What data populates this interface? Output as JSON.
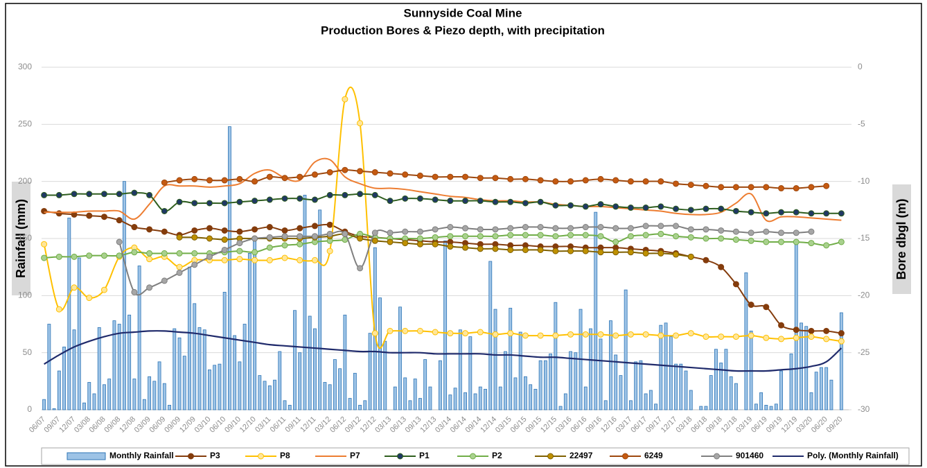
{
  "chart_data": [
    {
      "type": "bar",
      "title": "Sunnyside Coal Mine",
      "subtitle": "Production Bores & Piezo depth, with precipitation",
      "ylabel": "Rainfall (mm)",
      "ylim": [
        0,
        300
      ],
      "yticks": [
        0,
        50,
        100,
        150,
        200,
        250,
        300
      ],
      "grid": true,
      "categories": [
        "06/07",
        null,
        null,
        "09/07",
        null,
        null,
        "12/07",
        null,
        null,
        "03/08",
        null,
        null,
        "06/08",
        null,
        null,
        "09/08",
        null,
        null,
        "12/08",
        null,
        null,
        "03/09",
        null,
        null,
        "06/09",
        null,
        null,
        "09/09",
        null,
        null,
        "12/09",
        null,
        null,
        "03/10",
        null,
        null,
        "06/10",
        null,
        null,
        "09/10",
        null,
        null,
        "12/10",
        null,
        null,
        "03/11",
        null,
        null,
        "06/11",
        null,
        null,
        "09/11",
        null,
        null,
        "12/11",
        null,
        null,
        "03/12",
        null,
        null,
        "06/12",
        null,
        null,
        "09/12",
        null,
        null,
        "12/12",
        null,
        null,
        "03/13",
        null,
        null,
        "06/13",
        null,
        null,
        "09/13",
        null,
        null,
        "12/13",
        null,
        null,
        "03/14",
        null,
        null,
        "06/14",
        null,
        null,
        "09/14",
        null,
        null,
        "12/14",
        null,
        null,
        "03/15",
        null,
        null,
        "06/15",
        null,
        null,
        "09/15",
        null,
        null,
        "12/15",
        null,
        null,
        "03/16",
        null,
        null,
        "06/16",
        null,
        null,
        "09/16",
        null,
        null,
        "12/16",
        null,
        null,
        "03/17",
        null,
        null,
        "06/17",
        null,
        null,
        "09/17",
        null,
        null,
        "12/17",
        null,
        null,
        "03/18",
        null,
        null,
        "06/18",
        null,
        null,
        "09/18",
        null,
        null,
        "12/18",
        null,
        null,
        "03/19",
        null,
        null,
        "06/19",
        null,
        null,
        "09/19",
        null,
        null,
        "12/19",
        null,
        null,
        "03/20",
        null,
        null,
        "06/20",
        null,
        null,
        "09/20"
      ],
      "series": [
        {
          "name": "Monthly Rainfall",
          "color": "#9dc3e6",
          "edge_color": "#2e75b6",
          "values": [
            9,
            75,
            1,
            34,
            55,
            168,
            70,
            133,
            6,
            24,
            14,
            72,
            22,
            27,
            78,
            75,
            200,
            83,
            27,
            126,
            9,
            29,
            25,
            42,
            23,
            4,
            71,
            63,
            47,
            125,
            93,
            72,
            70,
            35,
            39,
            40,
            103,
            248,
            65,
            42,
            75,
            137,
            150,
            30,
            25,
            21,
            26,
            51,
            8,
            4,
            87,
            50,
            188,
            82,
            71,
            175,
            24,
            22,
            44,
            36,
            83,
            10,
            32,
            4,
            8,
            67,
            142,
            98,
            60,
            0,
            20,
            90,
            28,
            8,
            27,
            10,
            44,
            20,
            0,
            43,
            148,
            13,
            19,
            70,
            15,
            64,
            14,
            20,
            18,
            130,
            88,
            20,
            51,
            89,
            28,
            68,
            29,
            22,
            18,
            43,
            43,
            49,
            94,
            3,
            14,
            51,
            50,
            88,
            20,
            71,
            173,
            62,
            8,
            78,
            48,
            30,
            105,
            8,
            42,
            43,
            14,
            17,
            5,
            74,
            76,
            64,
            40,
            40,
            34,
            17,
            0,
            3,
            3,
            30,
            53,
            41,
            53,
            29,
            23,
            0,
            120,
            69,
            5,
            15,
            4,
            3,
            5,
            34,
            0,
            49,
            147,
            76,
            73,
            15,
            33,
            37,
            37,
            26,
            0,
            85
          ]
        }
      ]
    },
    {
      "type": "line",
      "y2label": "Bore dbgl (m)",
      "y2lim": [
        -30,
        0
      ],
      "y2ticks": [
        -30,
        -25,
        -20,
        -15,
        -10,
        -5,
        0
      ],
      "x": [
        "06/07",
        "09/07",
        "12/07",
        "03/08",
        "06/08",
        "09/08",
        "12/08",
        "03/09",
        "06/09",
        "09/09",
        "12/09",
        "03/10",
        "06/10",
        "09/10",
        "12/10",
        "03/11",
        "06/11",
        "09/11",
        "12/11",
        "03/12",
        "06/12",
        "09/12",
        "12/12",
        "03/13",
        "06/13",
        "09/13",
        "12/13",
        "03/14",
        "06/14",
        "09/14",
        "12/14",
        "03/15",
        "06/15",
        "09/15",
        "12/15",
        "03/16",
        "06/16",
        "09/16",
        "12/16",
        "03/17",
        "06/17",
        "09/17",
        "12/17",
        "03/18",
        "06/18",
        "09/18",
        "12/18",
        "03/19",
        "06/19",
        "09/19",
        "12/19",
        "03/20",
        "06/20",
        "09/20"
      ],
      "series": [
        {
          "name": "P3",
          "axis": "y2",
          "color": "#843c0c",
          "marker_color": "#843c0c",
          "values": [
            -12.6,
            -12.8,
            -12.9,
            -13.0,
            -13.1,
            -13.4,
            -14.0,
            -14.2,
            -14.4,
            -14.7,
            -14.3,
            -14.1,
            -14.3,
            -14.4,
            -14.2,
            -14.0,
            -14.3,
            -14.1,
            -13.9,
            -13.8,
            -14.4,
            -14.8,
            -14.9,
            -15.0,
            -15.1,
            -15.2,
            -15.3,
            -15.3,
            -15.4,
            -15.5,
            -15.5,
            -15.6,
            -15.6,
            -15.7,
            -15.7,
            -15.7,
            -15.8,
            -15.8,
            -15.8,
            -15.9,
            -16.0,
            -16.1,
            -16.3,
            -16.6,
            -16.9,
            -17.5,
            -19.0,
            -20.8,
            -21.0,
            -22.6,
            -23.0,
            -23.1,
            -23.1,
            -23.3
          ]
        },
        {
          "name": "P8",
          "axis": "y2",
          "color": "#ffc000",
          "marker_color": "#ffe699",
          "values": [
            -15.5,
            -21.2,
            -19.3,
            -20.2,
            -19.5,
            -16.6,
            -15.8,
            -16.8,
            -16.6,
            -17.5,
            -16.9,
            -16.9,
            -16.9,
            -16.8,
            -16.9,
            -16.9,
            -16.7,
            -16.9,
            -16.9,
            -16.1,
            -2.8,
            -4.9,
            -23.3,
            -23.1,
            -23.1,
            -23.1,
            -23.2,
            -23.3,
            -23.3,
            -23.2,
            -23.4,
            -23.3,
            -23.5,
            -23.5,
            -23.5,
            -23.4,
            -23.4,
            -23.4,
            -23.5,
            -23.4,
            -23.4,
            -23.5,
            -23.5,
            -23.3,
            -23.6,
            -23.6,
            -23.6,
            -23.5,
            -23.7,
            -23.8,
            -23.7,
            -23.6,
            -23.8,
            -24.0
          ]
        },
        {
          "name": "P7",
          "axis": "y2",
          "color": "#ed7d31",
          "values": [
            -12.7,
            -12.7,
            -12.7,
            -12.6,
            -12.6,
            -12.6,
            -13.3,
            -12.0,
            -10.4,
            -10.4,
            -10.4,
            -10.5,
            -10.4,
            -10.2,
            -9.3,
            -9.0,
            -9.7,
            -9.9,
            -8.3,
            -8.1,
            -9.6,
            -10.2,
            -10.6,
            -10.6,
            -10.7,
            -10.9,
            -11.1,
            -11.3,
            -11.4,
            -11.6,
            -11.7,
            -11.7,
            -11.8,
            -11.8,
            -12.0,
            -12.1,
            -12.2,
            -12.2,
            -12.3,
            -12.4,
            -12.5,
            -12.6,
            -12.8,
            -12.9,
            -12.9,
            -12.7,
            -11.9,
            -11.1,
            -13.4,
            -13.1,
            -13.1,
            -13.2,
            -13.3,
            -13.4
          ]
        },
        {
          "name": "P1",
          "axis": "y2",
          "color": "#2e5e1e",
          "marker_color": "#203864",
          "values": [
            -11.2,
            -11.2,
            -11.1,
            -11.1,
            -11.1,
            -11.1,
            -11.0,
            -11.2,
            -12.6,
            -11.8,
            -11.9,
            -11.9,
            -11.9,
            -11.8,
            -11.7,
            -11.6,
            -11.5,
            -11.5,
            -11.6,
            -11.2,
            -11.2,
            -11.1,
            -11.2,
            -11.7,
            -11.5,
            -11.5,
            -11.6,
            -11.7,
            -11.7,
            -11.7,
            -11.8,
            -11.8,
            -11.9,
            -11.8,
            -12.1,
            -12.1,
            -12.2,
            -12.0,
            -12.2,
            -12.3,
            -12.3,
            -12.2,
            -12.4,
            -12.5,
            -12.4,
            -12.4,
            -12.6,
            -12.7,
            -12.8,
            -12.7,
            -12.7,
            -12.8,
            -12.8,
            -12.8
          ]
        },
        {
          "name": "P2",
          "axis": "y2",
          "color": "#70ad47",
          "marker_color": "#a9d18e",
          "values": [
            -16.7,
            -16.6,
            -16.6,
            -16.5,
            -16.5,
            -16.5,
            -16.2,
            -16.3,
            -16.3,
            -16.3,
            -16.3,
            -16.3,
            -16.2,
            -16.1,
            -16.2,
            -15.8,
            -15.6,
            -15.5,
            -15.3,
            -15.2,
            -15.1,
            -14.6,
            -14.9,
            -15.0,
            -15.0,
            -15.0,
            -14.9,
            -14.8,
            -14.8,
            -14.8,
            -14.8,
            -14.7,
            -14.7,
            -14.7,
            -14.8,
            -14.7,
            -14.7,
            -14.8,
            -15.3,
            -14.8,
            -14.7,
            -14.6,
            -14.8,
            -14.9,
            -15.0,
            -15.0,
            -15.1,
            -15.2,
            -15.3,
            -15.3,
            -15.3,
            -15.4,
            -15.6,
            -15.3
          ]
        },
        {
          "name": "22497",
          "axis": "y2",
          "color": "#7f6000",
          "marker_color": "#bf9000",
          "values": [
            null,
            null,
            null,
            null,
            null,
            null,
            null,
            null,
            null,
            -14.9,
            -14.9,
            -15.0,
            -15.1,
            -15.0,
            -15.0,
            -15.0,
            -15.0,
            -15.0,
            -14.9,
            -14.8,
            -14.6,
            -15.0,
            -15.2,
            -15.3,
            -15.4,
            -15.5,
            -15.5,
            -15.7,
            -15.8,
            -15.9,
            -15.9,
            -16.0,
            -16.0,
            -16.0,
            -16.1,
            -16.1,
            -16.1,
            -16.2,
            -16.2,
            -16.2,
            -16.3,
            -16.3,
            -16.4,
            -16.6,
            null,
            null,
            null,
            null,
            null,
            null,
            null,
            null,
            null,
            null
          ]
        },
        {
          "name": "6249",
          "axis": "y2",
          "color": "#9e480e",
          "marker_color": "#c55a11",
          "values": [
            null,
            null,
            null,
            null,
            null,
            null,
            null,
            null,
            -10.1,
            -9.9,
            -9.8,
            -9.9,
            -9.9,
            -9.8,
            -10.0,
            -9.6,
            -9.7,
            -9.6,
            -9.4,
            -9.2,
            -9.0,
            -9.1,
            -9.2,
            -9.3,
            -9.4,
            -9.5,
            -9.6,
            -9.6,
            -9.6,
            -9.7,
            -9.7,
            -9.8,
            -9.8,
            -9.9,
            -10.0,
            -10.0,
            -9.9,
            -9.8,
            -9.9,
            -10.0,
            -10.0,
            -10.0,
            -10.2,
            -10.3,
            -10.4,
            -10.5,
            -10.5,
            -10.5,
            -10.5,
            -10.6,
            -10.6,
            -10.5,
            -10.4,
            null
          ]
        },
        {
          "name": "901460",
          "axis": "y2",
          "color": "#7f7f7f",
          "marker_color": "#a6a6a6",
          "values": [
            null,
            null,
            null,
            null,
            null,
            -15.3,
            -19.7,
            -19.3,
            -18.7,
            -18.0,
            -17.3,
            -16.6,
            -16.0,
            -15.4,
            -15.0,
            -14.9,
            -14.8,
            -14.8,
            -14.8,
            -14.6,
            -14.6,
            -17.6,
            -14.5,
            -14.5,
            -14.4,
            -14.4,
            -14.2,
            -14.0,
            -14.1,
            -14.2,
            -14.2,
            -14.1,
            -14.0,
            -14.0,
            -14.1,
            -14.1,
            -14.0,
            -14.0,
            -14.1,
            -14.1,
            -13.9,
            -13.9,
            -13.9,
            -14.2,
            -14.2,
            -14.3,
            -14.4,
            -14.5,
            -14.4,
            -14.5,
            -14.5,
            -14.4,
            null,
            null
          ]
        },
        {
          "name": "Poly. (Monthly Rainfall)",
          "axis": "y",
          "color": "#1f2a6b",
          "values": [
            40,
            48,
            55,
            60,
            64,
            67,
            68,
            69,
            69,
            68,
            67,
            65,
            63,
            61,
            59,
            57,
            56,
            55,
            54,
            53,
            52,
            51,
            51,
            50,
            50,
            50,
            49,
            49,
            49,
            49,
            48,
            48,
            47,
            46,
            46,
            45,
            44,
            43,
            42,
            41,
            40,
            39,
            38,
            37,
            36,
            35,
            34,
            34,
            34,
            35,
            36,
            38,
            42,
            54
          ]
        }
      ]
    }
  ]
}
